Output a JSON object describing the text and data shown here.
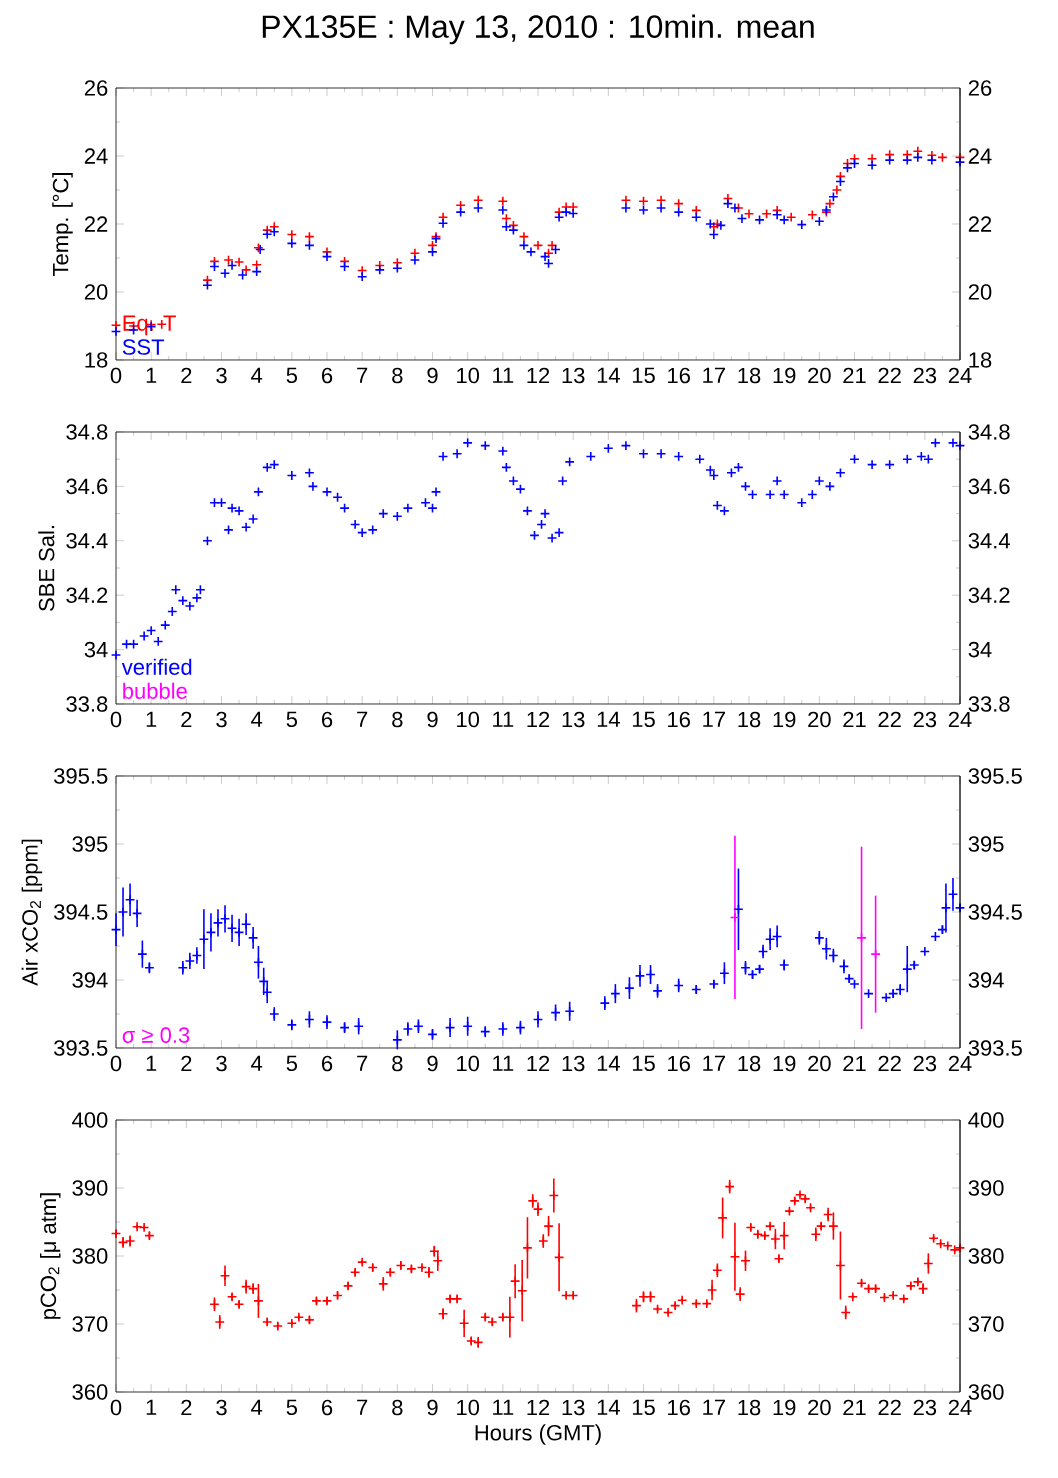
{
  "chart_data": [
    {
      "type": "scatter",
      "title": "PX135E : May 13, 2010 : 10min. mean",
      "ylabel": "Temp. [°C]",
      "marker": "cross",
      "legend": "bottom left",
      "xlim": [
        0,
        24
      ],
      "xticks": [
        0,
        1,
        2,
        3,
        4,
        5,
        6,
        7,
        8,
        9,
        10,
        11,
        12,
        13,
        14,
        15,
        16,
        17,
        18,
        19,
        20,
        21,
        22,
        23,
        24
      ],
      "ylim": [
        18,
        26
      ],
      "yticks": [
        18,
        20,
        22,
        24,
        26
      ],
      "y2lim": [
        18,
        26
      ],
      "y2ticks": [
        18,
        20,
        22,
        24,
        26
      ],
      "series": [
        {
          "name": "Eq. T",
          "color": "#ff0000",
          "x": [
            0,
            0.5,
            1,
            1.3,
            2.6,
            2.8,
            3.2,
            3.5,
            3.7,
            4.0,
            4.05,
            4.3,
            4.5,
            5,
            5.5,
            6,
            6.5,
            7,
            7.5,
            8,
            8.5,
            9,
            9.1,
            9.3,
            9.8,
            10.3,
            11,
            11.1,
            11.3,
            11.6,
            12,
            12.3,
            12.4,
            12.6,
            12.8,
            13,
            14.5,
            15,
            15.5,
            16,
            16.5,
            17,
            17.1,
            17.4,
            17.7,
            18,
            18.5,
            18.8,
            19.2,
            19.8,
            20.2,
            20.3,
            20.5,
            20.6,
            20.8,
            21,
            21.5,
            22,
            22.5,
            22.8,
            23.2,
            23.5,
            24
          ],
          "values": [
            19.02,
            19.0,
            19.04,
            19.05,
            20.35,
            20.9,
            20.94,
            20.88,
            20.65,
            20.8,
            21.3,
            21.82,
            21.92,
            21.69,
            21.63,
            21.18,
            20.9,
            20.63,
            20.78,
            20.86,
            21.14,
            21.37,
            21.63,
            22.2,
            22.55,
            22.7,
            22.67,
            22.16,
            21.96,
            21.63,
            21.37,
            21.14,
            21.37,
            22.35,
            22.5,
            22.5,
            22.7,
            22.67,
            22.7,
            22.6,
            22.4,
            21.92,
            22.0,
            22.75,
            22.47,
            22.3,
            22.3,
            22.4,
            22.2,
            22.27,
            22.35,
            22.6,
            23.0,
            23.4,
            23.78,
            23.92,
            23.92,
            24.04,
            24.04,
            24.14,
            24.02,
            23.96,
            23.96
          ]
        },
        {
          "name": "SST",
          "color": "#0000ff",
          "x": [
            0,
            0.5,
            1,
            2.6,
            2.8,
            3.1,
            3.3,
            3.6,
            4.0,
            4.1,
            4.3,
            4.5,
            5,
            5.5,
            6,
            6.5,
            7,
            7.5,
            8,
            8.5,
            9,
            9.1,
            9.3,
            9.8,
            10.3,
            11,
            11.1,
            11.3,
            11.6,
            11.8,
            12.2,
            12.3,
            12.5,
            12.6,
            12.8,
            13,
            14.5,
            15,
            15.5,
            16,
            16.5,
            16.9,
            17,
            17.2,
            17.4,
            17.6,
            17.8,
            18.3,
            18.8,
            19,
            19.5,
            20,
            20.2,
            20.4,
            20.6,
            20.8,
            21,
            21.5,
            22,
            22.5,
            22.8,
            23.2,
            24
          ],
          "values": [
            18.84,
            18.88,
            18.98,
            20.2,
            20.75,
            20.55,
            20.78,
            20.5,
            20.6,
            21.25,
            21.7,
            21.77,
            21.43,
            21.37,
            21.04,
            20.75,
            20.45,
            20.65,
            20.7,
            20.94,
            21.18,
            21.57,
            22.02,
            22.35,
            22.47,
            22.41,
            21.92,
            21.82,
            21.37,
            21.18,
            21.04,
            20.84,
            21.25,
            22.2,
            22.35,
            22.31,
            22.47,
            22.41,
            22.47,
            22.35,
            22.2,
            22.0,
            21.69,
            21.96,
            22.6,
            22.47,
            22.16,
            22.12,
            22.27,
            22.12,
            21.98,
            22.08,
            22.41,
            22.8,
            23.25,
            23.65,
            23.78,
            23.73,
            23.88,
            23.88,
            23.96,
            23.88,
            23.82
          ]
        }
      ]
    },
    {
      "type": "scatter",
      "ylabel": "SBE Sal.",
      "marker": "cross",
      "legend": "bottom left",
      "xlim": [
        0,
        24
      ],
      "xticks": [
        0,
        1,
        2,
        3,
        4,
        5,
        6,
        7,
        8,
        9,
        10,
        11,
        12,
        13,
        14,
        15,
        16,
        17,
        18,
        19,
        20,
        21,
        22,
        23,
        24
      ],
      "ylim": [
        33.8,
        34.8
      ],
      "yticks": [
        33.8,
        34,
        34.2,
        34.4,
        34.6,
        34.8
      ],
      "y2lim": [
        33.8,
        34.8
      ],
      "y2ticks": [
        33.8,
        34,
        34.2,
        34.4,
        34.6,
        34.8
      ],
      "series": [
        {
          "name": "verified",
          "color": "#0000ff",
          "x": [
            0,
            0.3,
            0.5,
            0.8,
            1,
            1.2,
            1.4,
            1.6,
            1.7,
            1.9,
            2.1,
            2.3,
            2.4,
            2.6,
            2.8,
            3,
            3.2,
            3.3,
            3.5,
            3.7,
            3.9,
            4.05,
            4.3,
            4.5,
            5,
            5.5,
            5.6,
            6,
            6.3,
            6.5,
            6.8,
            7,
            7.3,
            7.6,
            8,
            8.3,
            8.8,
            9,
            9.1,
            9.3,
            9.7,
            10,
            10.5,
            11,
            11.1,
            11.3,
            11.5,
            11.7,
            11.9,
            12.1,
            12.2,
            12.4,
            12.6,
            12.7,
            12.9,
            13.5,
            14,
            14.5,
            15,
            15.5,
            16,
            16.6,
            16.9,
            17,
            17.1,
            17.3,
            17.5,
            17.7,
            17.9,
            18.1,
            18.6,
            18.8,
            19,
            19.5,
            19.8,
            20,
            20.3,
            20.6,
            21,
            21.5,
            22,
            22.5,
            22.9,
            23.1,
            23.3,
            23.8,
            24
          ],
          "values": [
            33.98,
            34.02,
            34.02,
            34.05,
            34.07,
            34.03,
            34.09,
            34.14,
            34.22,
            34.18,
            34.16,
            34.19,
            34.22,
            34.4,
            34.54,
            34.54,
            34.44,
            34.52,
            34.51,
            34.45,
            34.48,
            34.58,
            34.67,
            34.68,
            34.64,
            34.65,
            34.6,
            34.58,
            34.56,
            34.52,
            34.46,
            34.43,
            34.44,
            34.5,
            34.49,
            34.52,
            34.54,
            34.52,
            34.58,
            34.71,
            34.72,
            34.76,
            34.75,
            34.73,
            34.67,
            34.62,
            34.59,
            34.51,
            34.42,
            34.46,
            34.5,
            34.41,
            34.43,
            34.62,
            34.69,
            34.71,
            34.74,
            34.75,
            34.72,
            34.72,
            34.71,
            34.7,
            34.66,
            34.64,
            34.53,
            34.51,
            34.65,
            34.67,
            34.6,
            34.57,
            34.57,
            34.62,
            34.57,
            34.54,
            34.57,
            34.62,
            34.6,
            34.65,
            34.7,
            34.68,
            34.68,
            34.7,
            34.71,
            34.7,
            34.76,
            34.76,
            34.75
          ]
        },
        {
          "name": "bubble",
          "color": "#ff00ff"
        }
      ]
    },
    {
      "type": "scatter",
      "ylabel": "Air xCO$_{2}$ [ppm]",
      "marker": "cross",
      "legend": "bottom left",
      "xlim": [
        0,
        24
      ],
      "xticks": [
        0,
        1,
        2,
        3,
        4,
        5,
        6,
        7,
        8,
        9,
        10,
        11,
        12,
        13,
        14,
        15,
        16,
        17,
        18,
        19,
        20,
        21,
        22,
        23,
        24
      ],
      "ylim": [
        393.5,
        395.5
      ],
      "yticks": [
        393.5,
        394,
        394.5,
        395,
        395.5
      ],
      "y2lim": [
        393.5,
        395.5
      ],
      "y2ticks": [
        393.5,
        394,
        394.5,
        395,
        395.5
      ],
      "series": [
        {
          "color": "#0000ff",
          "x": [
            0,
            0.2,
            0.4,
            0.6,
            0.75,
            0.95,
            1.9,
            2.1,
            2.3,
            2.5,
            2.7,
            2.9,
            3.1,
            3.3,
            3.5,
            3.7,
            3.9,
            4.05,
            4.2,
            4.3,
            4.5,
            5,
            5.5,
            6,
            6.5,
            6.9,
            8,
            8.3,
            8.6,
            9,
            9.5,
            10,
            10.5,
            11,
            11.5,
            12,
            12.5,
            12.9,
            13.9,
            14.2,
            14.6,
            14.9,
            15.2,
            15.4,
            16,
            16.5,
            17,
            17.3,
            17.7,
            17.9,
            18.1,
            18.3,
            18.4,
            18.6,
            18.8,
            19,
            20,
            20.2,
            20.4,
            20.7,
            20.85,
            21.0,
            21.4,
            21.9,
            22.1,
            22.3,
            22.5,
            22.7,
            23,
            23.3,
            23.5,
            23.6,
            23.8,
            24
          ],
          "values": [
            394.37,
            394.5,
            394.59,
            394.49,
            394.19,
            394.09,
            394.09,
            394.14,
            394.18,
            394.3,
            394.35,
            394.42,
            394.45,
            394.38,
            394.35,
            394.41,
            394.31,
            394.13,
            393.99,
            393.91,
            393.75,
            393.67,
            393.71,
            393.69,
            393.65,
            393.66,
            393.56,
            393.64,
            393.66,
            393.6,
            393.65,
            393.66,
            393.62,
            393.64,
            393.65,
            393.71,
            393.76,
            393.77,
            393.83,
            393.9,
            393.94,
            394.03,
            394.04,
            393.92,
            393.96,
            393.93,
            393.97,
            394.05,
            394.52,
            394.09,
            394.04,
            394.08,
            394.21,
            394.3,
            394.32,
            394.11,
            394.31,
            394.23,
            394.18,
            394.1,
            394.01,
            393.97,
            393.9,
            393.87,
            393.9,
            393.93,
            394.08,
            394.11,
            394.21,
            394.32,
            394.37,
            394.53,
            394.63,
            394.53
          ],
          "errors": [
            0.12,
            0.18,
            0.12,
            0.1,
            0.1,
            0.04,
            0.05,
            0.06,
            0.06,
            0.22,
            0.14,
            0.1,
            0.1,
            0.1,
            0.1,
            0.08,
            0.08,
            0.12,
            0.1,
            0.08,
            0.05,
            0.04,
            0.06,
            0.05,
            0.04,
            0.06,
            0.07,
            0.05,
            0.05,
            0.04,
            0.07,
            0.07,
            0.04,
            0.05,
            0.05,
            0.06,
            0.06,
            0.07,
            0.05,
            0.07,
            0.08,
            0.08,
            0.07,
            0.05,
            0.05,
            0.03,
            0.03,
            0.08,
            0.3,
            0.05,
            0.03,
            0.03,
            0.05,
            0.08,
            0.08,
            0.04,
            0.05,
            0.08,
            0.05,
            0.05,
            0.03,
            null,
            null,
            null,
            0.03,
            0.04,
            0.17,
            0.03,
            null,
            null,
            0.03,
            0.18,
            0.12,
            0.03
          ]
        },
        {
          "name": "σ ≥ 0.3",
          "color": "#ff00ff",
          "x": [
            17.6,
            21.2,
            21.6
          ],
          "values": [
            394.46,
            394.31,
            394.19
          ],
          "errors": [
            0.6,
            0.67,
            0.43
          ]
        }
      ]
    },
    {
      "type": "scatter",
      "ylabel": "pCO$_{2}$ [μ atm]",
      "xlabel": "Hours (GMT)",
      "marker": "cross",
      "xlim": [
        0,
        24
      ],
      "xticks": [
        0,
        1,
        2,
        3,
        4,
        5,
        6,
        7,
        8,
        9,
        10,
        11,
        12,
        13,
        14,
        15,
        16,
        17,
        18,
        19,
        20,
        21,
        22,
        23,
        24
      ],
      "ylim": [
        360,
        400
      ],
      "yticks": [
        360,
        370,
        380,
        390,
        400
      ],
      "y2lim": [
        360,
        400
      ],
      "y2ticks": [
        360,
        370,
        380,
        390,
        400
      ],
      "series": [
        {
          "color": "#ff0000",
          "x": [
            0,
            0.2,
            0.4,
            0.6,
            0.8,
            0.95,
            2.8,
            2.95,
            3.1,
            3.3,
            3.5,
            3.7,
            3.9,
            4.05,
            4.3,
            4.6,
            5,
            5.2,
            5.5,
            5.7,
            6,
            6.3,
            6.6,
            6.8,
            7,
            7.3,
            7.6,
            7.8,
            8.1,
            8.4,
            8.7,
            8.9,
            9.05,
            9.15,
            9.3,
            9.5,
            9.7,
            9.9,
            10.1,
            10.3,
            10.5,
            10.7,
            11,
            11.2,
            11.35,
            11.55,
            11.7,
            11.85,
            12,
            12.15,
            12.3,
            12.45,
            12.6,
            12.8,
            13,
            14.8,
            15,
            15.2,
            15.4,
            15.7,
            15.9,
            16.1,
            16.5,
            16.8,
            16.95,
            17.1,
            17.25,
            17.45,
            17.6,
            17.75,
            17.9,
            18.05,
            18.25,
            18.45,
            18.6,
            18.75,
            18.85,
            19.0,
            19.15,
            19.3,
            19.45,
            19.6,
            19.75,
            19.9,
            20.05,
            20.25,
            20.4,
            20.6,
            20.75,
            20.95,
            21.2,
            21.4,
            21.6,
            21.85,
            22.1,
            22.4,
            22.6,
            22.8,
            22.95,
            23.1,
            23.25,
            23.45,
            23.65,
            23.85,
            24
          ],
          "values": [
            383.3,
            382.0,
            382.2,
            384.3,
            384.2,
            383.0,
            372.9,
            370.3,
            377.1,
            374.0,
            372.9,
            375.5,
            375.2,
            373.4,
            370.3,
            369.7,
            370.1,
            371.0,
            370.6,
            373.4,
            373.4,
            374.2,
            375.6,
            377.6,
            379.1,
            378.3,
            375.9,
            377.6,
            378.6,
            378.1,
            378.3,
            377.6,
            380.7,
            379.3,
            371.5,
            373.7,
            373.7,
            370.1,
            367.5,
            367.3,
            371.0,
            370.3,
            371.0,
            371.0,
            376.3,
            374.9,
            381.2,
            388.1,
            386.9,
            382.2,
            384.4,
            388.9,
            379.8,
            374.2,
            374.2,
            372.7,
            374.0,
            374.0,
            372.2,
            371.7,
            372.7,
            373.5,
            373.0,
            373.0,
            375.0,
            377.9,
            385.6,
            390.2,
            379.9,
            374.4,
            379.3,
            384.2,
            383.2,
            383.0,
            384.4,
            382.5,
            379.6,
            383.0,
            386.6,
            388.1,
            389.0,
            388.4,
            387.1,
            383.2,
            384.4,
            386.1,
            384.4,
            378.6,
            371.7,
            374.0,
            376.0,
            375.2,
            375.2,
            373.9,
            374.2,
            373.7,
            375.6,
            376.2,
            375.2,
            378.9,
            382.6,
            381.8,
            381.5,
            380.9,
            381.2
          ],
          "errors": [
            0.5,
            0.8,
            0.8,
            0.3,
            0.3,
            0.5,
            1,
            1,
            1.5,
            0.5,
            0.5,
            1,
            0.8,
            2.5,
            0.5,
            0.5,
            0.3,
            0.3,
            0.5,
            0.5,
            0.5,
            0.5,
            0.5,
            0.5,
            0.3,
            0.5,
            1,
            0.5,
            0.5,
            0.5,
            0.3,
            0.8,
            0.8,
            1.5,
            0.8,
            0.5,
            0.5,
            2,
            0.5,
            0.8,
            0.5,
            0.5,
            0.5,
            3,
            2.5,
            4.5,
            4.5,
            1,
            1,
            1,
            1.5,
            2.5,
            5,
            0.3,
            0.3,
            1,
            0.8,
            0.8,
            0.3,
            0.3,
            0.5,
            0.3,
            0.3,
            0.3,
            1.5,
            1,
            3,
            1,
            5,
            1,
            1.5,
            0.5,
            0.5,
            0.3,
            0.3,
            1.5,
            0.5,
            2,
            0.3,
            0.5,
            0.3,
            0.5,
            0.3,
            1,
            0.5,
            1,
            2,
            5,
            1,
            0.3,
            0.5,
            0.5,
            0.5,
            0.3,
            0.3,
            0.3,
            0.5,
            0.5,
            0.8,
            1.5,
            0.3,
            0.3,
            0.3,
            0.3,
            0.3
          ]
        }
      ]
    }
  ]
}
